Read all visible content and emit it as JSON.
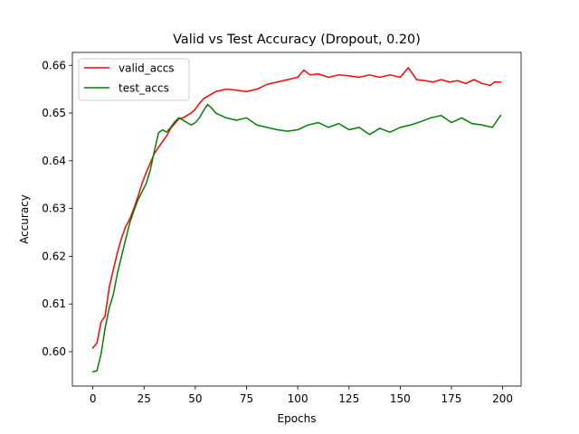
{
  "chart_data": {
    "type": "line",
    "title": "Valid vs Test Accuracy (Dropout, 0.20)",
    "xlabel": "Epochs",
    "ylabel": "Accuracy",
    "xlim": [
      -10,
      209
    ],
    "ylim": [
      0.5928,
      0.6627
    ],
    "xticks": [
      0,
      25,
      50,
      75,
      100,
      125,
      150,
      175,
      200
    ],
    "yticks": [
      0.6,
      0.61,
      0.62,
      0.63,
      0.64,
      0.65,
      0.66
    ],
    "ytick_labels": [
      "0.60",
      "0.61",
      "0.62",
      "0.63",
      "0.64",
      "0.65",
      "0.66"
    ],
    "grid": false,
    "legend": "upper-left",
    "series": [
      {
        "name": "valid_accs",
        "color": "#ff0000",
        "x": [
          0,
          2,
          4,
          6,
          8,
          10,
          12,
          14,
          16,
          18,
          20,
          22,
          24,
          26,
          28,
          30,
          32,
          34,
          36,
          38,
          40,
          42,
          44,
          46,
          48,
          50,
          52,
          54,
          56,
          58,
          60,
          65,
          70,
          75,
          80,
          85,
          90,
          95,
          100,
          103,
          106,
          110,
          115,
          120,
          125,
          130,
          135,
          140,
          145,
          150,
          154,
          158,
          162,
          166,
          170,
          174,
          178,
          182,
          186,
          190,
          194,
          196,
          199
        ],
        "y": [
          0.6008,
          0.6018,
          0.6062,
          0.6075,
          0.6135,
          0.6172,
          0.6208,
          0.6238,
          0.6262,
          0.6278,
          0.63,
          0.6325,
          0.6352,
          0.6375,
          0.6395,
          0.6415,
          0.6428,
          0.644,
          0.6452,
          0.6468,
          0.6478,
          0.6488,
          0.649,
          0.6495,
          0.65,
          0.6508,
          0.652,
          0.653,
          0.6535,
          0.654,
          0.6545,
          0.655,
          0.6548,
          0.6545,
          0.655,
          0.656,
          0.6565,
          0.657,
          0.6575,
          0.659,
          0.658,
          0.6582,
          0.6575,
          0.658,
          0.6578,
          0.6575,
          0.658,
          0.6575,
          0.658,
          0.6575,
          0.6595,
          0.657,
          0.6568,
          0.6565,
          0.657,
          0.6565,
          0.6568,
          0.6562,
          0.657,
          0.6562,
          0.6558,
          0.6565,
          0.6565
        ]
      },
      {
        "name": "test_accs",
        "color": "#008000",
        "x": [
          0,
          2,
          4,
          6,
          8,
          10,
          12,
          14,
          16,
          18,
          20,
          22,
          24,
          26,
          28,
          30,
          32,
          34,
          36,
          38,
          40,
          42,
          44,
          46,
          48,
          50,
          52,
          54,
          56,
          58,
          60,
          65,
          70,
          75,
          80,
          85,
          90,
          95,
          100,
          105,
          110,
          115,
          120,
          125,
          130,
          135,
          140,
          145,
          150,
          155,
          160,
          165,
          170,
          175,
          180,
          185,
          190,
          195,
          199
        ],
        "y": [
          0.5958,
          0.596,
          0.5995,
          0.605,
          0.6092,
          0.612,
          0.6165,
          0.62,
          0.6235,
          0.627,
          0.6295,
          0.6318,
          0.6335,
          0.6352,
          0.638,
          0.642,
          0.6458,
          0.6465,
          0.646,
          0.647,
          0.6482,
          0.649,
          0.6485,
          0.648,
          0.6475,
          0.648,
          0.649,
          0.6505,
          0.6518,
          0.651,
          0.65,
          0.649,
          0.6485,
          0.649,
          0.6475,
          0.647,
          0.6465,
          0.6462,
          0.6465,
          0.6475,
          0.648,
          0.647,
          0.6478,
          0.6465,
          0.647,
          0.6455,
          0.6468,
          0.646,
          0.647,
          0.6475,
          0.6482,
          0.649,
          0.6495,
          0.648,
          0.649,
          0.6478,
          0.6475,
          0.647,
          0.6495
        ]
      }
    ]
  }
}
